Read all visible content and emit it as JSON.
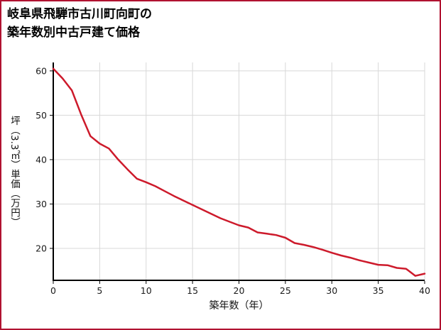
{
  "header": {
    "title_line1": "岐阜県飛騨市古川町向町の",
    "title_line2": "築年数別中古戸建て価格"
  },
  "colors": {
    "line": "#cd1a2b",
    "border": "#b01230",
    "grid": "#d8d8d8",
    "axis": "#000000",
    "tick_text": "#1a1a1a",
    "background": "#ffffff"
  },
  "chart_data": {
    "type": "line",
    "title": "岐阜県飛騨市古川町向町の築年数別中古戸建て価格",
    "xlabel": "築年数（年）",
    "ylabel": "坪（3.3㎡）単価（万円）",
    "x": [
      0,
      1,
      2,
      3,
      4,
      5,
      6,
      7,
      8,
      9,
      10,
      11,
      12,
      13,
      14,
      15,
      16,
      17,
      18,
      19,
      20,
      21,
      22,
      23,
      24,
      25,
      26,
      27,
      28,
      29,
      30,
      31,
      32,
      33,
      34,
      35,
      36,
      37,
      38,
      39,
      40
    ],
    "values": [
      60.5,
      58.3,
      55.6,
      50.2,
      45.3,
      43.6,
      42.5,
      40.0,
      37.8,
      35.7,
      34.9,
      34.0,
      32.9,
      31.8,
      30.8,
      29.8,
      28.8,
      27.8,
      26.8,
      26.0,
      25.2,
      24.7,
      23.6,
      23.3,
      23.0,
      22.4,
      21.2,
      20.8,
      20.3,
      19.7,
      19.0,
      18.4,
      17.9,
      17.3,
      16.8,
      16.3,
      16.2,
      15.6,
      15.4,
      13.8,
      14.3
    ],
    "x_ticks": [
      0,
      5,
      10,
      15,
      20,
      25,
      30,
      35,
      40
    ],
    "y_ticks": [
      20,
      30,
      40,
      50,
      60
    ],
    "xlim": [
      0,
      40
    ],
    "ylim": [
      12.8,
      61.9
    ],
    "grid": true,
    "legend": false
  }
}
